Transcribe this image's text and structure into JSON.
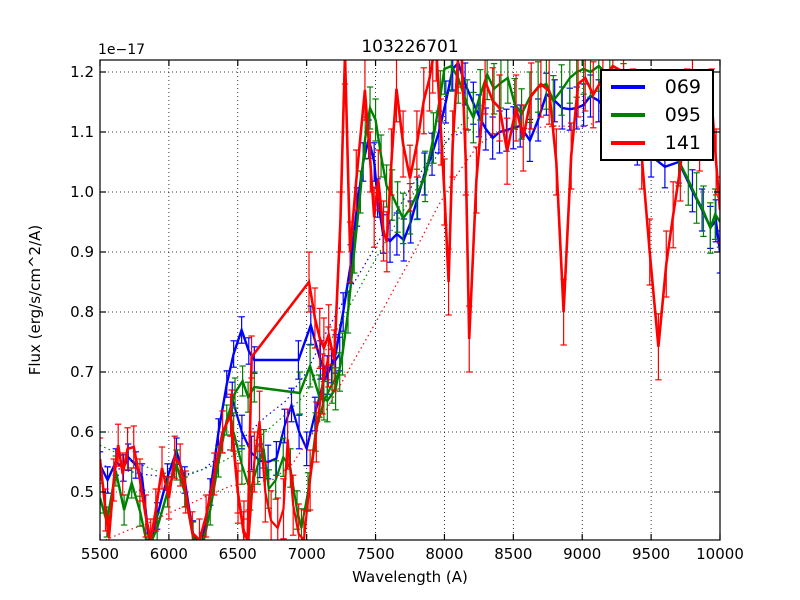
{
  "figure": {
    "title": "103226701",
    "xlabel": "Wavelength (A)",
    "ylabel": "Flux (erg/s/cm^2/A)",
    "offset_text": "1e−17"
  },
  "chart_data": {
    "type": "line",
    "title": "103226701",
    "xlabel": "Wavelength (A)",
    "ylabel": "Flux (erg/s/cm^2/A)",
    "y_scale_factor": "1e-17",
    "xlim": [
      5500,
      10000
    ],
    "ylim": [
      0.42,
      1.22
    ],
    "xticks": [
      5500,
      6000,
      6500,
      7000,
      7500,
      8000,
      8500,
      9000,
      9500,
      10000
    ],
    "xtick_labels": [
      "5500",
      "6000",
      "6500",
      "7000",
      "7500",
      "8000",
      "8500",
      "9000",
      "9500",
      "10000"
    ],
    "yticks": [
      0.5,
      0.6,
      0.7,
      0.8,
      0.9,
      1.0,
      1.1,
      1.2
    ],
    "ytick_labels": [
      "0.5",
      "0.6",
      "0.7",
      "0.8",
      "0.9",
      "1.0",
      "1.1",
      "1.2"
    ],
    "grid": "dotted both axes at major ticks",
    "legend_position": "upper right",
    "series": [
      {
        "name": "069",
        "color": "#0000ff",
        "style": "solid with error bars",
        "x": [
          5500,
          5555,
          5615,
          5670,
          5705,
          5760,
          5805,
          5860,
          5915,
          5990,
          6055,
          6115,
          6175,
          6240,
          6300,
          6360,
          6420,
          6470,
          6528,
          6580,
          6620,
          6940,
          7030,
          7100,
          7150,
          7210,
          7265,
          7320,
          7365,
          7410,
          7450,
          7490,
          7515,
          7555,
          7605,
          7655,
          7705,
          7755,
          7805,
          7855,
          7910,
          7960,
          8010,
          8060,
          8100,
          8150,
          8210,
          8250,
          8300,
          8350,
          8400,
          8450,
          8500,
          8550,
          8620,
          8680,
          8740,
          8800,
          8855,
          8910,
          8960,
          9010,
          9060,
          9120,
          9200,
          9300,
          9400,
          9500,
          9600,
          9700,
          9800,
          9870,
          9930,
          9970,
          10000
        ],
        "y": [
          0.545,
          0.52,
          0.55,
          0.54,
          0.558,
          0.545,
          0.525,
          0.41,
          0.46,
          0.525,
          0.568,
          0.52,
          0.43,
          0.41,
          0.5,
          0.6,
          0.68,
          0.73,
          0.77,
          0.735,
          0.72,
          0.72,
          0.778,
          0.72,
          0.695,
          0.73,
          0.8,
          0.88,
          0.975,
          1.05,
          1.088,
          1.05,
          0.99,
          0.93,
          0.918,
          0.93,
          0.92,
          0.95,
          0.99,
          1.03,
          1.063,
          1.1,
          1.15,
          1.205,
          1.215,
          1.18,
          1.148,
          1.127,
          1.105,
          1.09,
          1.1,
          1.103,
          1.107,
          1.11,
          1.086,
          1.12,
          1.163,
          1.152,
          1.14,
          1.138,
          1.14,
          1.145,
          1.16,
          1.152,
          1.13,
          1.105,
          1.08,
          1.06,
          1.042,
          1.05,
          1.002,
          0.97,
          0.941,
          0.952,
          0.9
        ],
        "err_ranges": [
          [
            6620,
            0.022
          ],
          [
            7600,
            0.032
          ],
          [
            10000,
            0.035
          ]
        ],
        "secondary_segment": {
          "x": [
            6460,
            6530,
            6600,
            6660,
            6720,
            6780,
            6840,
            6890,
            6945,
            7000,
            7060,
            7120,
            7180,
            7240
          ],
          "y": [
            0.655,
            0.6,
            0.565,
            0.552,
            0.55,
            0.556,
            0.61,
            0.645,
            0.6,
            0.572,
            0.63,
            0.682,
            0.71,
            0.73
          ],
          "err": 0.028
        },
        "noise_dotted": {
          "x": [
            5500,
            5650,
            5800,
            5950,
            6100,
            6250,
            6400,
            6550,
            6700,
            6850,
            7000,
            7150,
            7300,
            7450,
            7600,
            7750,
            7900,
            8050,
            8200
          ],
          "y": [
            0.545,
            0.538,
            0.53,
            0.526,
            0.525,
            0.538,
            0.565,
            0.592,
            0.625,
            0.652,
            0.7,
            0.77,
            0.832,
            0.89,
            0.948,
            1.005,
            1.058,
            1.092,
            1.105
          ]
        }
      },
      {
        "name": "095",
        "color": "#008000",
        "style": "solid with error bars",
        "x": [
          5500,
          5550,
          5615,
          5675,
          5730,
          5790,
          5850,
          5915,
          5990,
          6055,
          6115,
          6175,
          6240,
          6300,
          6360,
          6420,
          6480,
          6535,
          6575,
          6620,
          6950,
          7025,
          7090,
          7150,
          7210,
          7260,
          7300,
          7345,
          7390,
          7425,
          7460,
          7500,
          7540,
          7580,
          7620,
          7660,
          7700,
          7750,
          7800,
          7860,
          7920,
          7970,
          8000,
          8050,
          8100,
          8165,
          8210,
          8260,
          8310,
          8360,
          8410,
          8460,
          8510,
          8560,
          8620,
          8680,
          8740,
          8790,
          8850,
          8910,
          8960,
          9010,
          9060,
          9120,
          9200,
          9300,
          9400,
          9500,
          9600,
          9700,
          9770,
          9830,
          9880,
          9930,
          9965,
          10000
        ],
        "y": [
          0.49,
          0.45,
          0.535,
          0.47,
          0.515,
          0.468,
          0.405,
          0.44,
          0.5,
          0.545,
          0.5,
          0.425,
          0.405,
          0.47,
          0.55,
          0.62,
          0.665,
          0.685,
          0.658,
          0.675,
          0.665,
          0.71,
          0.66,
          0.652,
          0.672,
          0.73,
          0.8,
          0.9,
          1.0,
          1.09,
          1.14,
          1.12,
          1.06,
          1.01,
          0.995,
          0.975,
          0.956,
          0.972,
          0.996,
          1.026,
          1.09,
          1.16,
          1.205,
          1.21,
          1.19,
          1.145,
          1.124,
          1.162,
          1.196,
          1.172,
          1.182,
          1.19,
          1.147,
          1.13,
          1.158,
          1.175,
          1.18,
          1.152,
          1.17,
          1.19,
          1.2,
          1.205,
          1.2,
          1.21,
          1.192,
          1.172,
          1.16,
          1.138,
          1.1,
          1.052,
          1.02,
          0.99,
          0.968,
          0.94,
          0.963,
          0.95
        ],
        "err_ranges": [
          [
            6620,
            0.025
          ],
          [
            7600,
            0.035
          ],
          [
            10000,
            0.042
          ]
        ],
        "secondary_segment": {
          "x": [
            6470,
            6530,
            6590,
            6645,
            6688,
            6725,
            6775,
            6830,
            6882,
            6930,
            6962,
            7010,
            7065,
            7125,
            7185,
            7240
          ],
          "y": [
            0.6,
            0.545,
            0.502,
            0.545,
            0.572,
            0.505,
            0.52,
            0.558,
            0.54,
            0.47,
            0.44,
            0.5,
            0.6,
            0.652,
            0.68,
            0.7
          ],
          "err": 0.032
        },
        "noise_dotted": {
          "x": [
            5500,
            5650,
            5800,
            5950,
            6100,
            6250,
            6400,
            6550,
            6700,
            6850,
            7000,
            7150,
            7300,
            7450,
            7600,
            7750,
            7900,
            8050,
            8200,
            8300
          ],
          "y": [
            0.578,
            0.562,
            0.545,
            0.532,
            0.528,
            0.538,
            0.552,
            0.572,
            0.6,
            0.63,
            0.665,
            0.742,
            0.805,
            0.868,
            0.928,
            0.988,
            1.045,
            1.095,
            1.13,
            1.15
          ]
        }
      },
      {
        "name": "141",
        "color": "#ff0000",
        "style": "solid with error bars",
        "x": [
          5500,
          5540,
          5565,
          5600,
          5632,
          5665,
          5700,
          5745,
          5790,
          5832,
          5868,
          5905,
          5950,
          6000,
          6042,
          6082,
          6122,
          6170,
          6222,
          6270,
          6330,
          6390,
          6448,
          6500,
          6542,
          6572,
          6600,
          7017,
          7060,
          7095,
          7125,
          7160,
          7200,
          7245,
          7278,
          7315,
          7360,
          7423,
          7462,
          7490,
          7520,
          7558,
          7582,
          7615,
          7652,
          7700,
          7750,
          7800,
          7850,
          7892,
          7915,
          7940,
          7975,
          8000,
          8030,
          8060,
          8098,
          8125,
          8155,
          8180,
          8232,
          8295,
          8350,
          8400,
          8455,
          8520,
          8572,
          8630,
          8700,
          8760,
          8812,
          8865,
          8920,
          8970,
          9022,
          9080,
          9150,
          9222,
          9300,
          9370,
          9432,
          9490,
          9553,
          9610,
          9660,
          9712,
          9762,
          9800,
          9852,
          9900,
          9940,
          9972,
          10000
        ],
        "y": [
          0.555,
          0.47,
          0.425,
          0.52,
          0.578,
          0.53,
          0.572,
          0.575,
          0.52,
          0.46,
          0.42,
          0.47,
          0.54,
          0.49,
          0.558,
          0.545,
          0.5,
          0.432,
          0.42,
          0.46,
          0.53,
          0.6,
          0.628,
          0.5,
          0.432,
          0.42,
          0.725,
          0.85,
          0.79,
          0.756,
          0.74,
          0.762,
          0.72,
          0.95,
          1.23,
          0.9,
          1.02,
          1.17,
          1.05,
          0.958,
          1.02,
          0.935,
          0.917,
          1.05,
          1.172,
          1.08,
          1.023,
          1.08,
          1.152,
          1.19,
          1.22,
          1.24,
          1.1,
          1.0,
          0.85,
          1.08,
          1.22,
          1.23,
          1.05,
          0.755,
          1.02,
          1.185,
          1.152,
          1.14,
          1.068,
          1.14,
          1.09,
          1.16,
          1.18,
          1.168,
          1.05,
          0.8,
          1.06,
          1.18,
          1.19,
          1.162,
          1.19,
          1.21,
          1.2,
          1.15,
          1.06,
          0.9,
          0.742,
          0.88,
          0.962,
          1.04,
          1.15,
          1.172,
          1.09,
          1.132,
          1.15,
          1.05,
          0.97
        ],
        "err_ranges": [
          [
            6620,
            0.035
          ],
          [
            7600,
            0.05
          ],
          [
            10000,
            0.055
          ]
        ],
        "secondary_segment": {
          "x": [
            6455,
            6502,
            6545,
            6578,
            6620,
            6658,
            6700,
            6742,
            6790,
            6832,
            6862,
            6902,
            6942,
            6980,
            7025,
            7070,
            7115,
            7158
          ],
          "y": [
            0.62,
            0.498,
            0.435,
            0.42,
            0.55,
            0.618,
            0.5,
            0.452,
            0.44,
            0.472,
            0.588,
            0.478,
            0.43,
            0.42,
            0.52,
            0.6,
            0.68,
            0.725
          ],
          "err": 0.05
        },
        "noise_dotted": {
          "x": [
            5540,
            5700,
            5850,
            6000,
            6150,
            6300,
            6450,
            6600,
            6750,
            6900,
            7050,
            7200,
            7350,
            7500,
            7650,
            7800,
            7950,
            8100,
            8250,
            8400,
            8550,
            8700,
            8850,
            9000,
            9150
          ],
          "y": [
            0.42,
            0.436,
            0.448,
            0.465,
            0.48,
            0.496,
            0.51,
            0.516,
            0.52,
            0.548,
            0.6,
            0.66,
            0.722,
            0.782,
            0.845,
            0.908,
            0.975,
            1.032,
            1.08,
            1.1,
            1.105,
            1.108,
            1.11,
            1.108,
            1.12
          ]
        }
      }
    ]
  },
  "legend": {
    "entries": [
      {
        "label": "069",
        "color": "#0000ff"
      },
      {
        "label": "095",
        "color": "#008000"
      },
      {
        "label": "141",
        "color": "#ff0000"
      }
    ]
  }
}
